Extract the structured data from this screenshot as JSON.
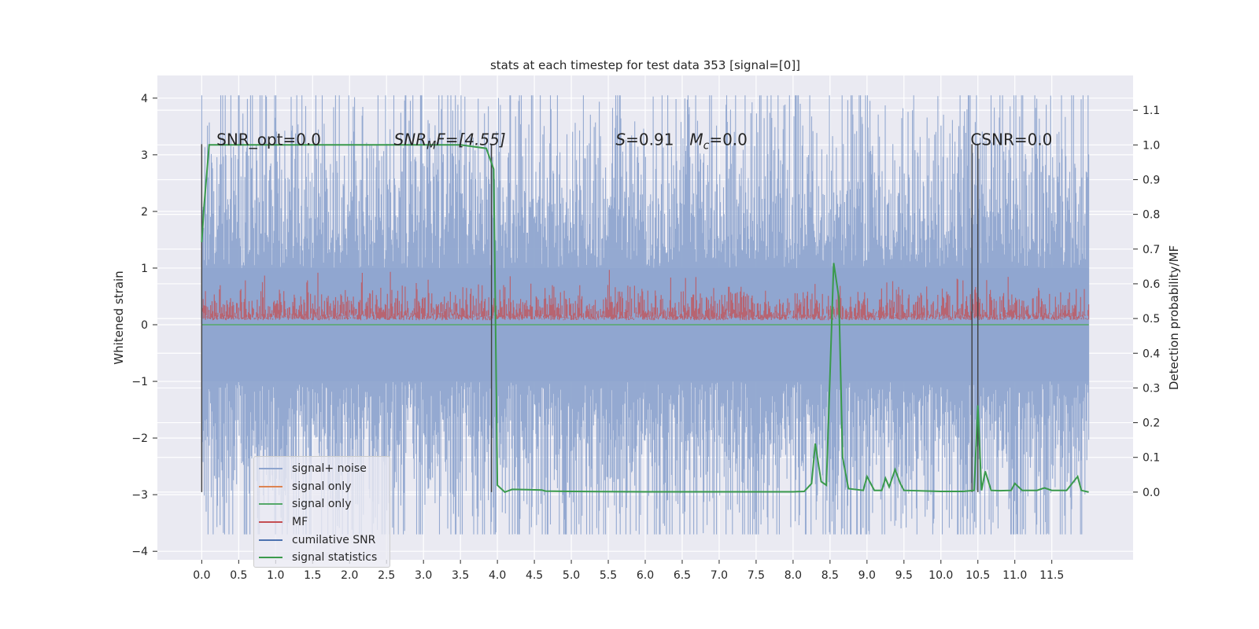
{
  "chart_data": {
    "type": "line",
    "title": "stats at each timestep for test data 353 [signal=[0]]",
    "xlabel": "",
    "ylabel_left": "Whitened strain",
    "ylabel_right": "Detection probability/MF",
    "xlim": [
      -0.6,
      12.6
    ],
    "ylim_left": [
      -4.15,
      4.4
    ],
    "ylim_right": [
      -0.195,
      1.2
    ],
    "x_ticks": [
      "0.0",
      "0.5",
      "1.0",
      "1.5",
      "2.0",
      "2.5",
      "3.0",
      "3.5",
      "4.0",
      "4.5",
      "5.0",
      "5.5",
      "6.0",
      "6.5",
      "7.0",
      "7.5",
      "8.0",
      "8.5",
      "9.0",
      "9.5",
      "10.0",
      "10.5",
      "11.0",
      "11.5"
    ],
    "y_ticks_left": [
      -4,
      -3,
      -2,
      -1,
      0,
      1,
      2,
      3,
      4
    ],
    "y_ticks_right": [
      "0.0",
      "0.1",
      "0.2",
      "0.3",
      "0.4",
      "0.5",
      "0.6",
      "0.7",
      "0.8",
      "0.9",
      "1.0",
      "1.1"
    ],
    "grid": true,
    "legend_position": "lower-left",
    "annotations": [
      {
        "text": "SNR_opt=0.0",
        "x": 0.2,
        "y_right": 1.0
      },
      {
        "text": "SNR",
        "sub": "M",
        "suffix": "F=[4.55]",
        "italic": true,
        "x": 2.6,
        "y_right": 1.0
      },
      {
        "text": "S=0.91",
        "x": 5.6,
        "y_right": 1.0
      },
      {
        "text": "M",
        "sub": "c",
        "suffix": "=0.0",
        "x": 6.6,
        "y_right": 1.0
      },
      {
        "text": "CSNR=0.0",
        "x": 10.4,
        "y_right": 1.0
      }
    ],
    "series": [
      {
        "name": "signal+ noise",
        "color": "#8fa5cf",
        "x_range": [
          0.0,
          12.0
        ],
        "approx_amplitude": 2.7
      },
      {
        "name": "signal only",
        "color": "#dd8452",
        "values_constant": 0.0
      },
      {
        "name": "signal only",
        "color": "#55a868",
        "values_constant": 0.0
      },
      {
        "name": "MF",
        "color": "#c44e52",
        "x_range": [
          0.0,
          12.0
        ],
        "approx_range_right": [
          0.48,
          0.64
        ]
      },
      {
        "name": "cumilative SNR",
        "color": "#4c72b0"
      },
      {
        "name": "signal statistics",
        "color": "#3a9a4c",
        "points": [
          [
            0.0,
            0.72
          ],
          [
            0.03,
            0.82
          ],
          [
            0.1,
            1.0
          ],
          [
            0.2,
            1.0
          ],
          [
            3.5,
            1.0
          ],
          [
            3.85,
            0.99
          ],
          [
            3.95,
            0.93
          ],
          [
            3.98,
            0.4
          ],
          [
            4.0,
            0.02
          ],
          [
            4.1,
            0.0
          ],
          [
            4.2,
            0.008
          ],
          [
            4.4,
            0.007
          ],
          [
            4.6,
            0.006
          ],
          [
            4.65,
            0.003
          ],
          [
            5.0,
            0.002
          ],
          [
            6.0,
            0.001
          ],
          [
            7.0,
            0.001
          ],
          [
            8.0,
            0.001
          ],
          [
            8.15,
            0.002
          ],
          [
            8.25,
            0.025
          ],
          [
            8.3,
            0.14
          ],
          [
            8.38,
            0.03
          ],
          [
            8.45,
            0.02
          ],
          [
            8.55,
            0.66
          ],
          [
            8.62,
            0.56
          ],
          [
            8.67,
            0.1
          ],
          [
            8.75,
            0.01
          ],
          [
            8.95,
            0.005
          ],
          [
            9.0,
            0.045
          ],
          [
            9.1,
            0.005
          ],
          [
            9.2,
            0.005
          ],
          [
            9.25,
            0.04
          ],
          [
            9.3,
            0.015
          ],
          [
            9.38,
            0.065
          ],
          [
            9.45,
            0.025
          ],
          [
            9.5,
            0.005
          ],
          [
            10.0,
            0.002
          ],
          [
            10.3,
            0.002
          ],
          [
            10.45,
            0.005
          ],
          [
            10.5,
            0.25
          ],
          [
            10.55,
            0.005
          ],
          [
            10.6,
            0.06
          ],
          [
            10.68,
            0.005
          ],
          [
            10.8,
            0.004
          ],
          [
            10.95,
            0.005
          ],
          [
            11.0,
            0.025
          ],
          [
            11.1,
            0.005
          ],
          [
            11.3,
            0.005
          ],
          [
            11.4,
            0.012
          ],
          [
            11.5,
            0.005
          ],
          [
            11.7,
            0.005
          ],
          [
            11.85,
            0.045
          ],
          [
            11.9,
            0.005
          ],
          [
            12.0,
            0.0
          ]
        ]
      }
    ],
    "vertical_markers_x": [
      0.0,
      3.92,
      10.42,
      10.5
    ],
    "vertical_marker_color": "#404040"
  }
}
